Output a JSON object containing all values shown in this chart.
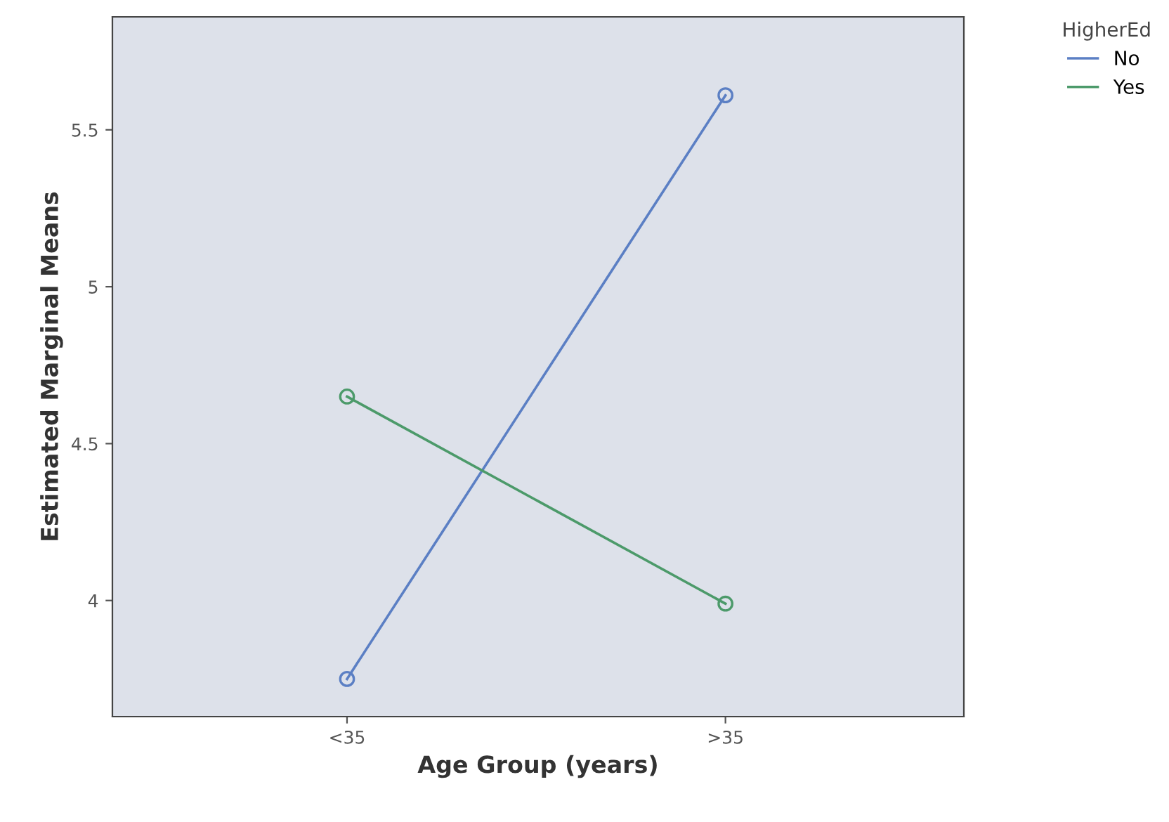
{
  "chart_data": {
    "type": "line",
    "xlabel": "Age Group (years)",
    "ylabel": "Estimated Marginal Means",
    "legend_title": "HigherEd",
    "categories": [
      "<35",
      ">35"
    ],
    "series": [
      {
        "name": "No",
        "color": "#5b7fc4",
        "values": [
          3.75,
          5.61
        ]
      },
      {
        "name": "Yes",
        "color": "#4c9a6a",
        "values": [
          4.65,
          3.99
        ]
      }
    ],
    "ylim": [
      3.63,
      5.86
    ],
    "yticks": [
      4,
      4.5,
      5,
      5.5
    ],
    "grid": false,
    "legend": "top right",
    "marker": "circle",
    "line_style": "solid"
  }
}
